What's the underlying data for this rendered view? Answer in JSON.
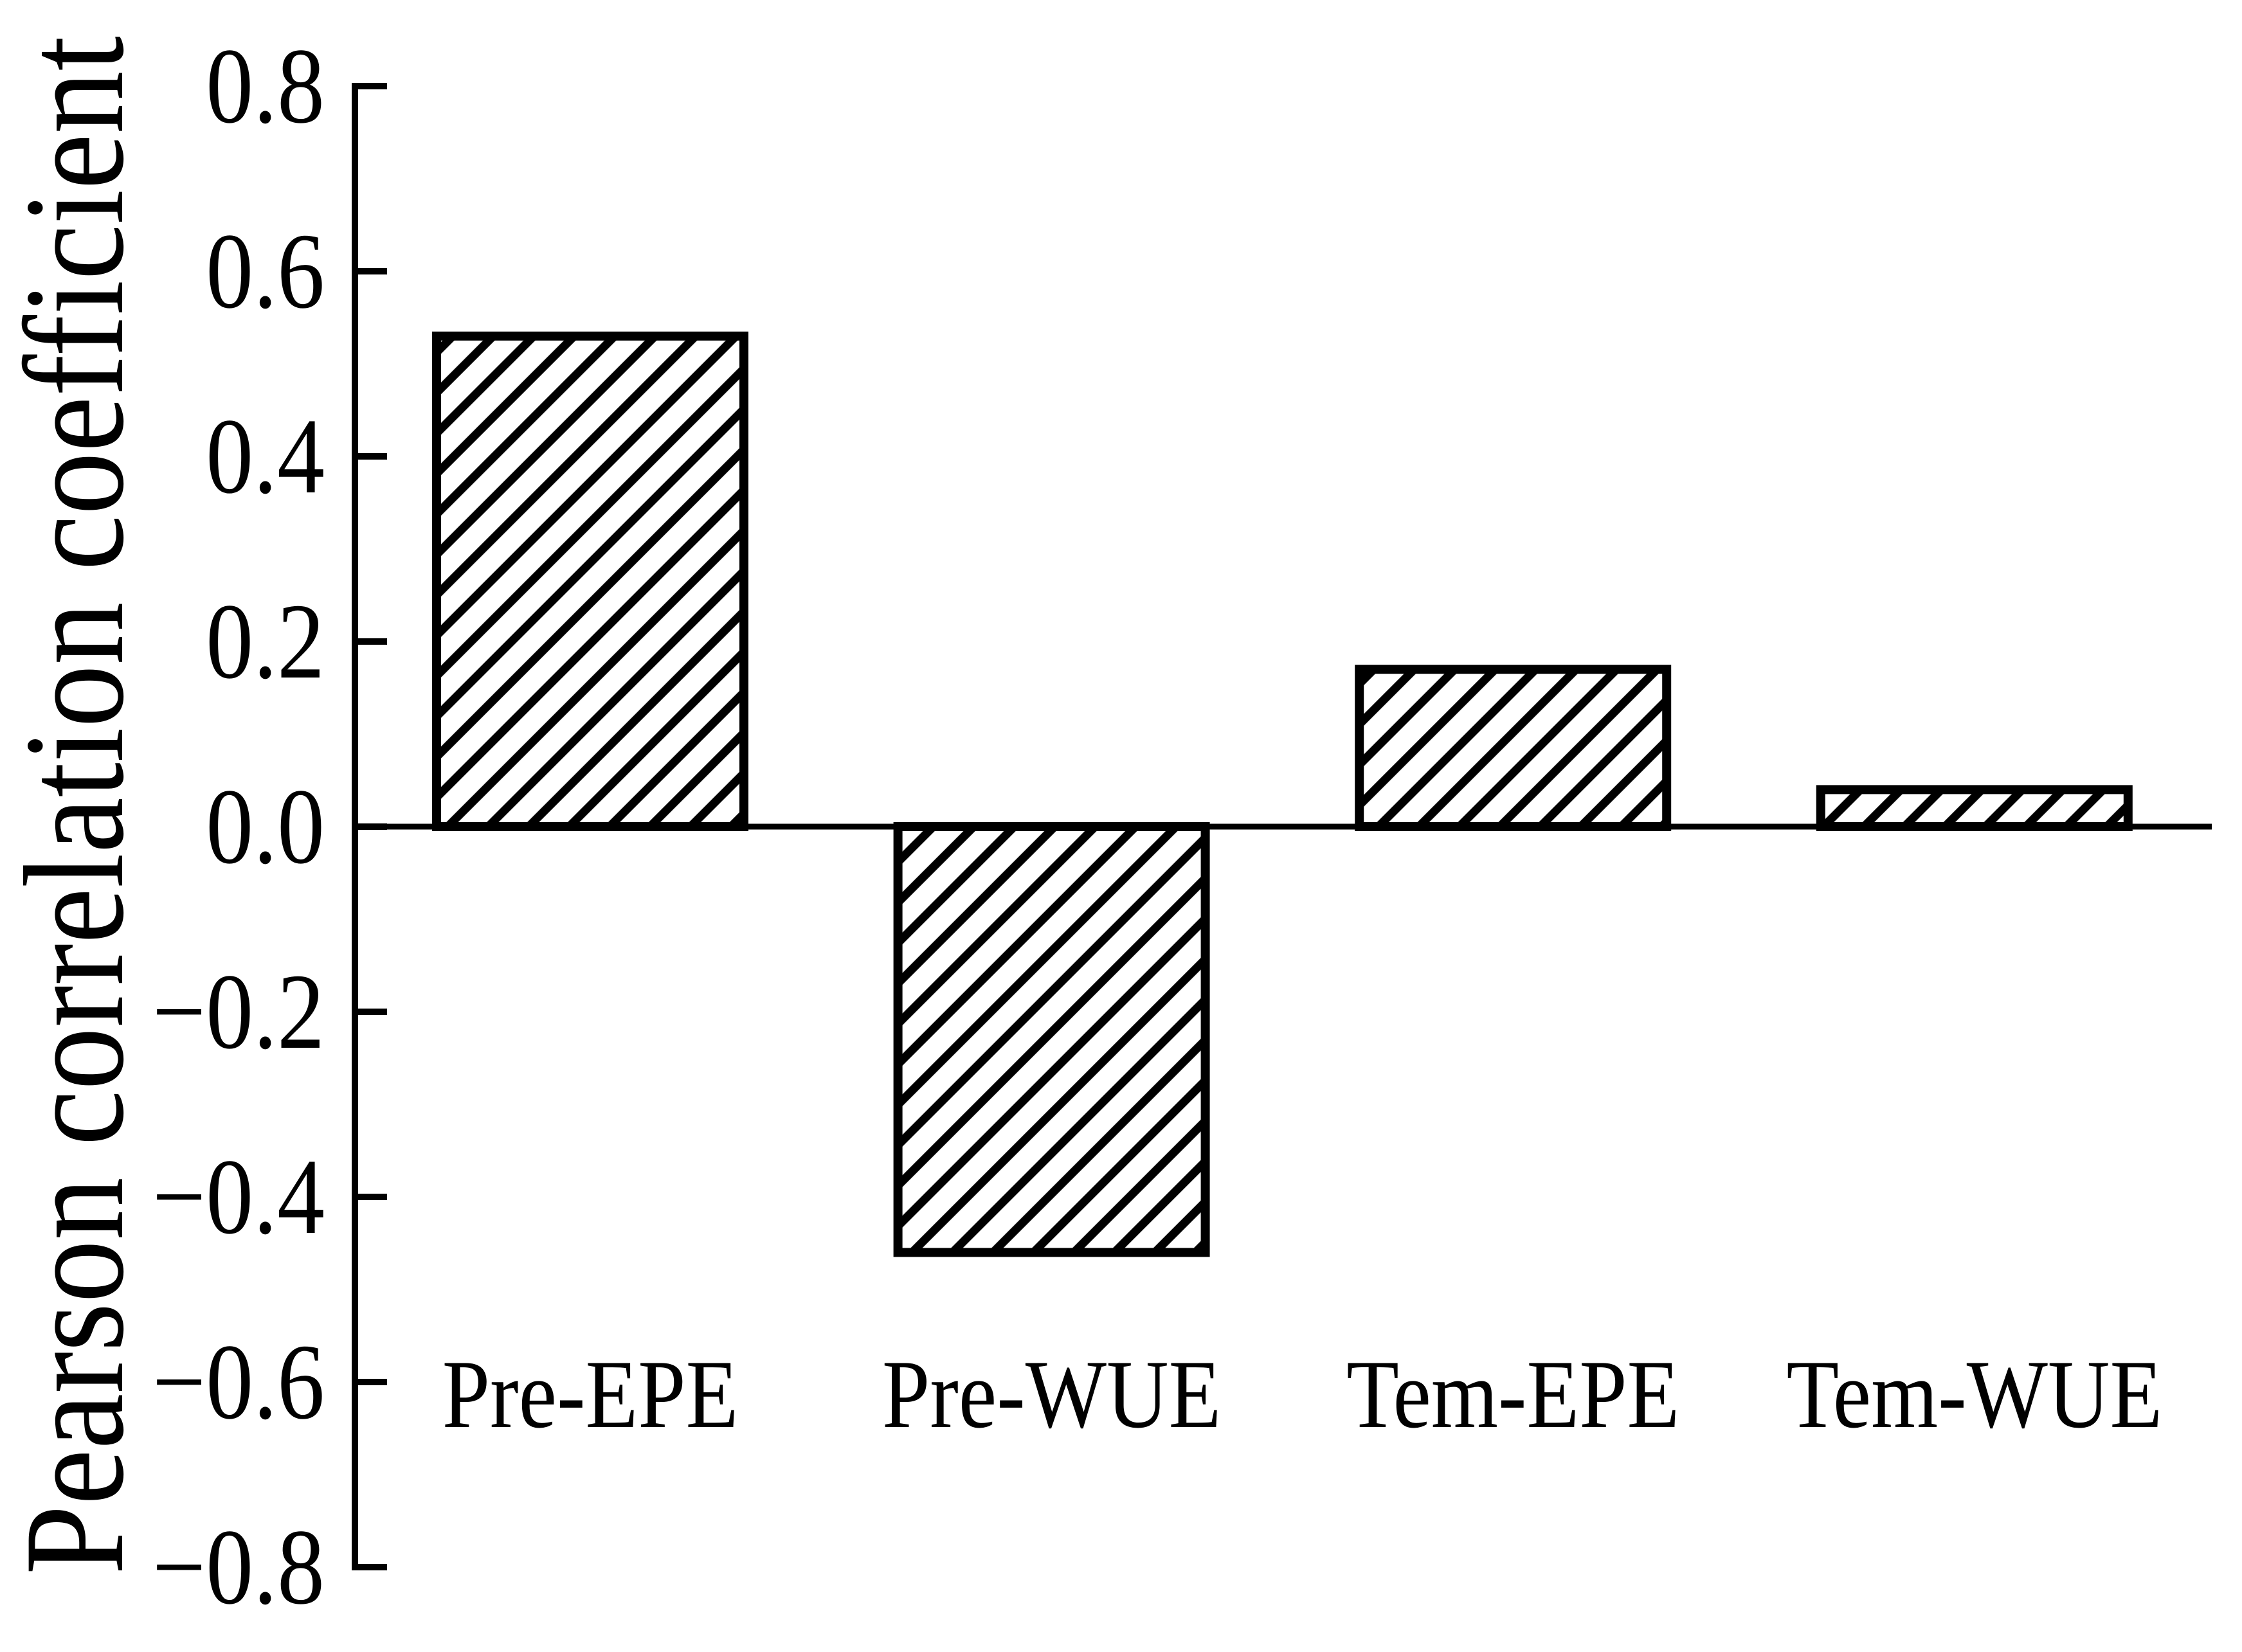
{
  "figure": {
    "background": "#ffffff",
    "ink": "#000000"
  },
  "chart_data": {
    "type": "bar",
    "title": "",
    "xlabel": "",
    "ylabel": "Pearson correlation coefficient",
    "categories": [
      "Pre-EPE",
      "Pre-WUE",
      "Tem-EPE",
      "Tem-WUE"
    ],
    "values": [
      0.53,
      -0.46,
      0.17,
      0.04
    ],
    "ylim": [
      -0.8,
      0.8
    ],
    "ytick_step": 0.2,
    "ytick_labels": [
      "0.8",
      "0.6",
      "0.4",
      "0.2",
      "0.0",
      "−0.2",
      "−0.4",
      "−0.6",
      "−0.8"
    ],
    "bar_fill": "#ffffff",
    "edge_color": "#000000",
    "bar_hatch": "forward-diagonal-45deg",
    "grid": false,
    "legend": false,
    "baseline_at_zero": true
  }
}
